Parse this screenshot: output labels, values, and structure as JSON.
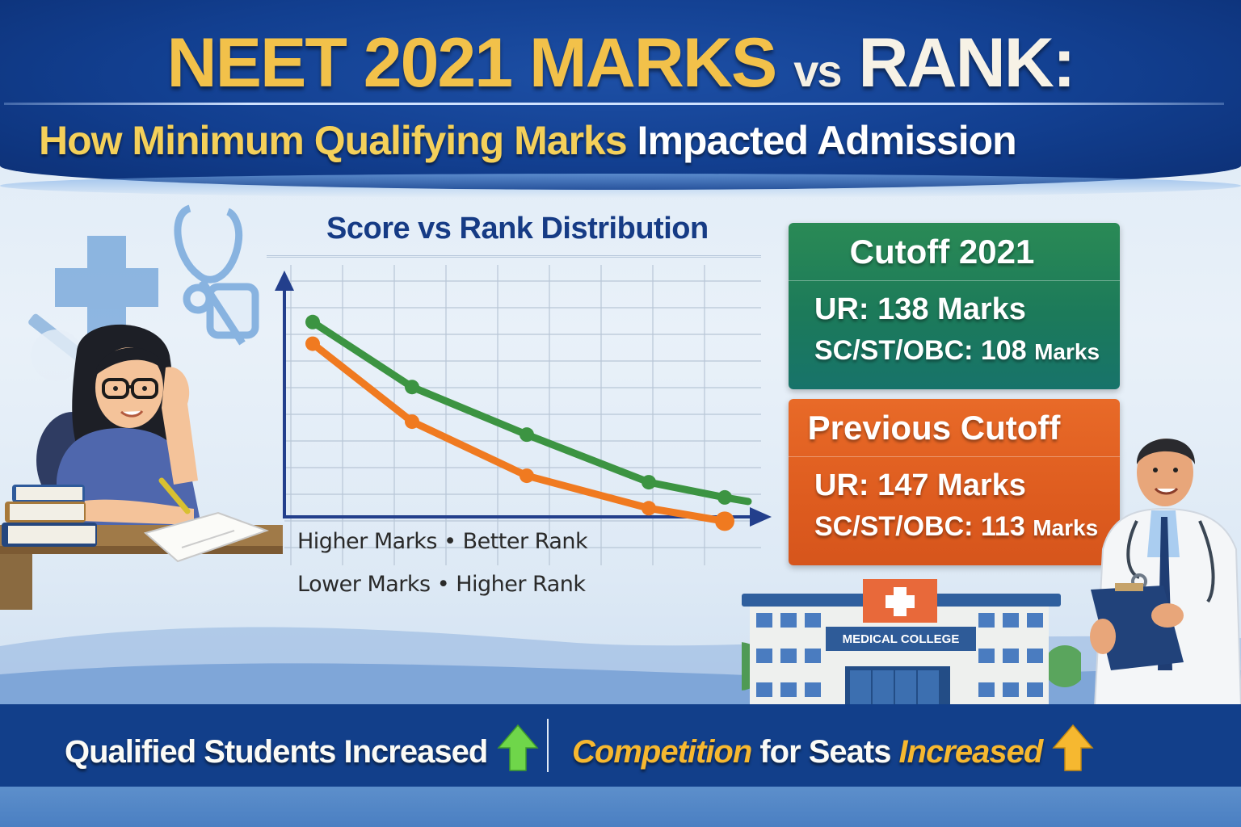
{
  "header": {
    "title_part1": "NEET 2021 MARKS",
    "title_vs": "vs",
    "title_part2": "RANK:",
    "subtitle_highlight": "How Minimum Qualifying Marks",
    "subtitle_rest": "Impacted Admission",
    "colors": {
      "background": "#123f90",
      "gold": "#f2c14a",
      "white": "#f7f2e6"
    }
  },
  "chart": {
    "title": "Score vs Rank Distribution",
    "caption_1": "Higher Marks • Better Rank",
    "caption_2": "Lower Marks • Higher Rank"
  },
  "chart_data": {
    "type": "line",
    "title": "Score vs Rank Distribution",
    "xlabel": "",
    "ylabel": "",
    "x": [
      1,
      2,
      3,
      4,
      5
    ],
    "series": [
      {
        "name": "Cutoff 2021",
        "color": "#3c9442",
        "values": [
          90,
          60,
          38,
          16,
          9
        ]
      },
      {
        "name": "Previous Cutoff",
        "color": "#f07a20",
        "values": [
          80,
          44,
          19,
          4,
          -2
        ]
      }
    ],
    "ylim": [
      0,
      100
    ],
    "grid": true,
    "legend": "none",
    "annotations": [
      "Higher Marks • Better Rank",
      "Lower Marks • Higher Rank"
    ],
    "note": "Axes unlabeled; values are relative estimates read from pixel positions"
  },
  "cutoffs": [
    {
      "heading": "Cutoff 2021",
      "ur_label": "UR: 138 Marks",
      "reserved_prefix": "SC/ST/OBC: 108",
      "reserved_suffix": "Marks",
      "ur_marks": 138,
      "reserved_marks": 108,
      "color": "#1f7f57"
    },
    {
      "heading": "Previous Cutoff",
      "ur_label": "UR: 147 Marks",
      "reserved_prefix": "SC/ST/OBC: 113",
      "reserved_suffix": "Marks",
      "ur_marks": 147,
      "reserved_marks": 113,
      "color": "#e0601f"
    }
  ],
  "building": {
    "sign": "MEDICAL COLLEGE"
  },
  "footer": {
    "left_text": "Qualified Students Increased",
    "right_highlight_1": "Competition",
    "right_middle": "for Seats",
    "right_highlight_2": "Increased",
    "left_arrow_color": "#6fd64a",
    "right_arrow_color": "#f6b830",
    "background": "#123f8a"
  },
  "icons": [
    "medical-cross-icon",
    "stethoscope-icon",
    "syringe-icon",
    "up-arrow-green-icon",
    "up-arrow-yellow-icon"
  ]
}
